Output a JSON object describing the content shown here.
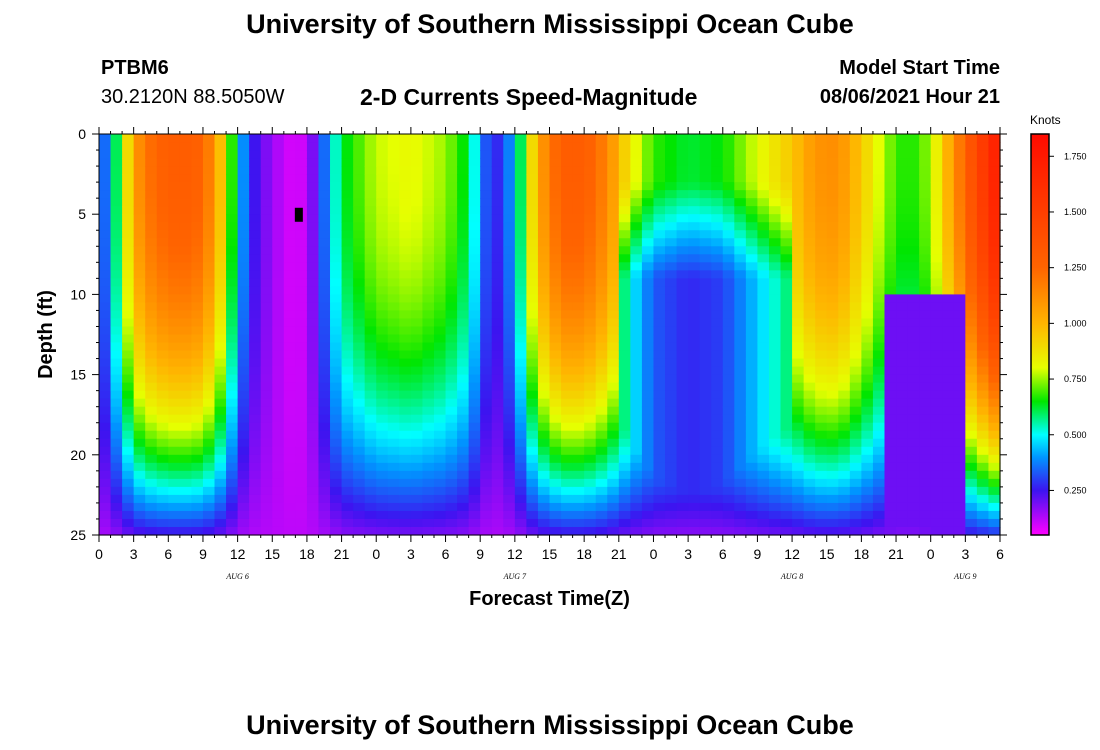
{
  "header": {
    "title_top": "University of Southern Mississippi Ocean Cube",
    "title_bottom": "University of Southern Mississippi Ocean Cube",
    "station_id": "PTBM6",
    "coordinates": "30.2120N  88.5050W",
    "product": "2-D Currents Speed-Magnitude",
    "model_label": "Model Start Time",
    "model_time": "08/06/2021 Hour 21"
  },
  "chart_data": {
    "type": "heatmap",
    "title": "2-D Currents Speed-Magnitude",
    "xlabel": "Forecast Time(Z)",
    "ylabel": "Depth (ft)",
    "x_tick_labels": [
      "0",
      "3",
      "6",
      "9",
      "12",
      "15",
      "18",
      "21",
      "0",
      "3",
      "6",
      "9",
      "12",
      "15",
      "18",
      "21",
      "0",
      "3",
      "6",
      "9",
      "12",
      "15",
      "18",
      "21",
      "0",
      "3",
      "6"
    ],
    "x_range_hours": [
      0,
      78
    ],
    "date_labels": [
      {
        "label": "AUG 6",
        "hour": 12
      },
      {
        "label": "AUG 7",
        "hour": 36
      },
      {
        "label": "AUG 8",
        "hour": 60
      },
      {
        "label": "AUG 9",
        "hour": 75
      }
    ],
    "y_ticks": [
      0,
      5,
      10,
      15,
      20,
      25
    ],
    "y_tick_labels": [
      "0",
      "5",
      "10",
      "15",
      "20",
      "25"
    ],
    "ylim": [
      0,
      25
    ],
    "y_inverted": true,
    "colorbar": {
      "unit": "Knots",
      "range": [
        0.05,
        1.85
      ],
      "tick_values": [
        0.25,
        0.5,
        0.75,
        1.0,
        1.25,
        1.5,
        1.75
      ],
      "tick_labels": [
        "0.250",
        "0.500",
        "0.750",
        "1.000",
        "1.250",
        "1.500",
        "1.750"
      ]
    },
    "surface_speed_by_hour": [
      {
        "hour": 0,
        "speed": 0.25
      },
      {
        "hour": 1,
        "speed": 0.45
      },
      {
        "hour": 2,
        "speed": 0.75
      },
      {
        "hour": 3,
        "speed": 1.05
      },
      {
        "hour": 4,
        "speed": 1.2
      },
      {
        "hour": 6,
        "speed": 1.3
      },
      {
        "hour": 8,
        "speed": 1.3
      },
      {
        "hour": 9,
        "speed": 1.25
      },
      {
        "hour": 10,
        "speed": 1.1
      },
      {
        "hour": 11,
        "speed": 0.85
      },
      {
        "hour": 12,
        "speed": 0.5
      },
      {
        "hour": 13,
        "speed": 0.28
      },
      {
        "hour": 15,
        "speed": 0.15
      },
      {
        "hour": 17,
        "speed": 0.08
      },
      {
        "hour": 18,
        "speed": 0.12
      },
      {
        "hour": 19,
        "speed": 0.25
      },
      {
        "hour": 20,
        "speed": 0.45
      },
      {
        "hour": 21,
        "speed": 0.62
      },
      {
        "hour": 24,
        "speed": 0.78
      },
      {
        "hour": 27,
        "speed": 0.82
      },
      {
        "hour": 30,
        "speed": 0.75
      },
      {
        "hour": 32,
        "speed": 0.62
      },
      {
        "hour": 33,
        "speed": 0.4
      },
      {
        "hour": 34,
        "speed": 0.25
      },
      {
        "hour": 35,
        "speed": 0.3
      },
      {
        "hour": 36,
        "speed": 0.45
      },
      {
        "hour": 37,
        "speed": 0.75
      },
      {
        "hour": 38,
        "speed": 1.05
      },
      {
        "hour": 40,
        "speed": 1.3
      },
      {
        "hour": 42,
        "speed": 1.3
      },
      {
        "hour": 44,
        "speed": 1.15
      },
      {
        "hour": 46,
        "speed": 0.85
      },
      {
        "hour": 48,
        "speed": 0.68
      },
      {
        "hour": 51,
        "speed": 0.62
      },
      {
        "hour": 54,
        "speed": 0.65
      },
      {
        "hour": 57,
        "speed": 0.8
      },
      {
        "hour": 60,
        "speed": 0.95
      },
      {
        "hour": 62,
        "speed": 1.1
      },
      {
        "hour": 64,
        "speed": 1.12
      },
      {
        "hour": 66,
        "speed": 0.95
      },
      {
        "hour": 68,
        "speed": 0.75
      },
      {
        "hour": 70,
        "speed": 0.65
      },
      {
        "hour": 72,
        "speed": 0.75
      },
      {
        "hour": 74,
        "speed": 1.1
      },
      {
        "hour": 76,
        "speed": 1.45
      },
      {
        "hour": 78,
        "speed": 1.75
      }
    ]
  }
}
